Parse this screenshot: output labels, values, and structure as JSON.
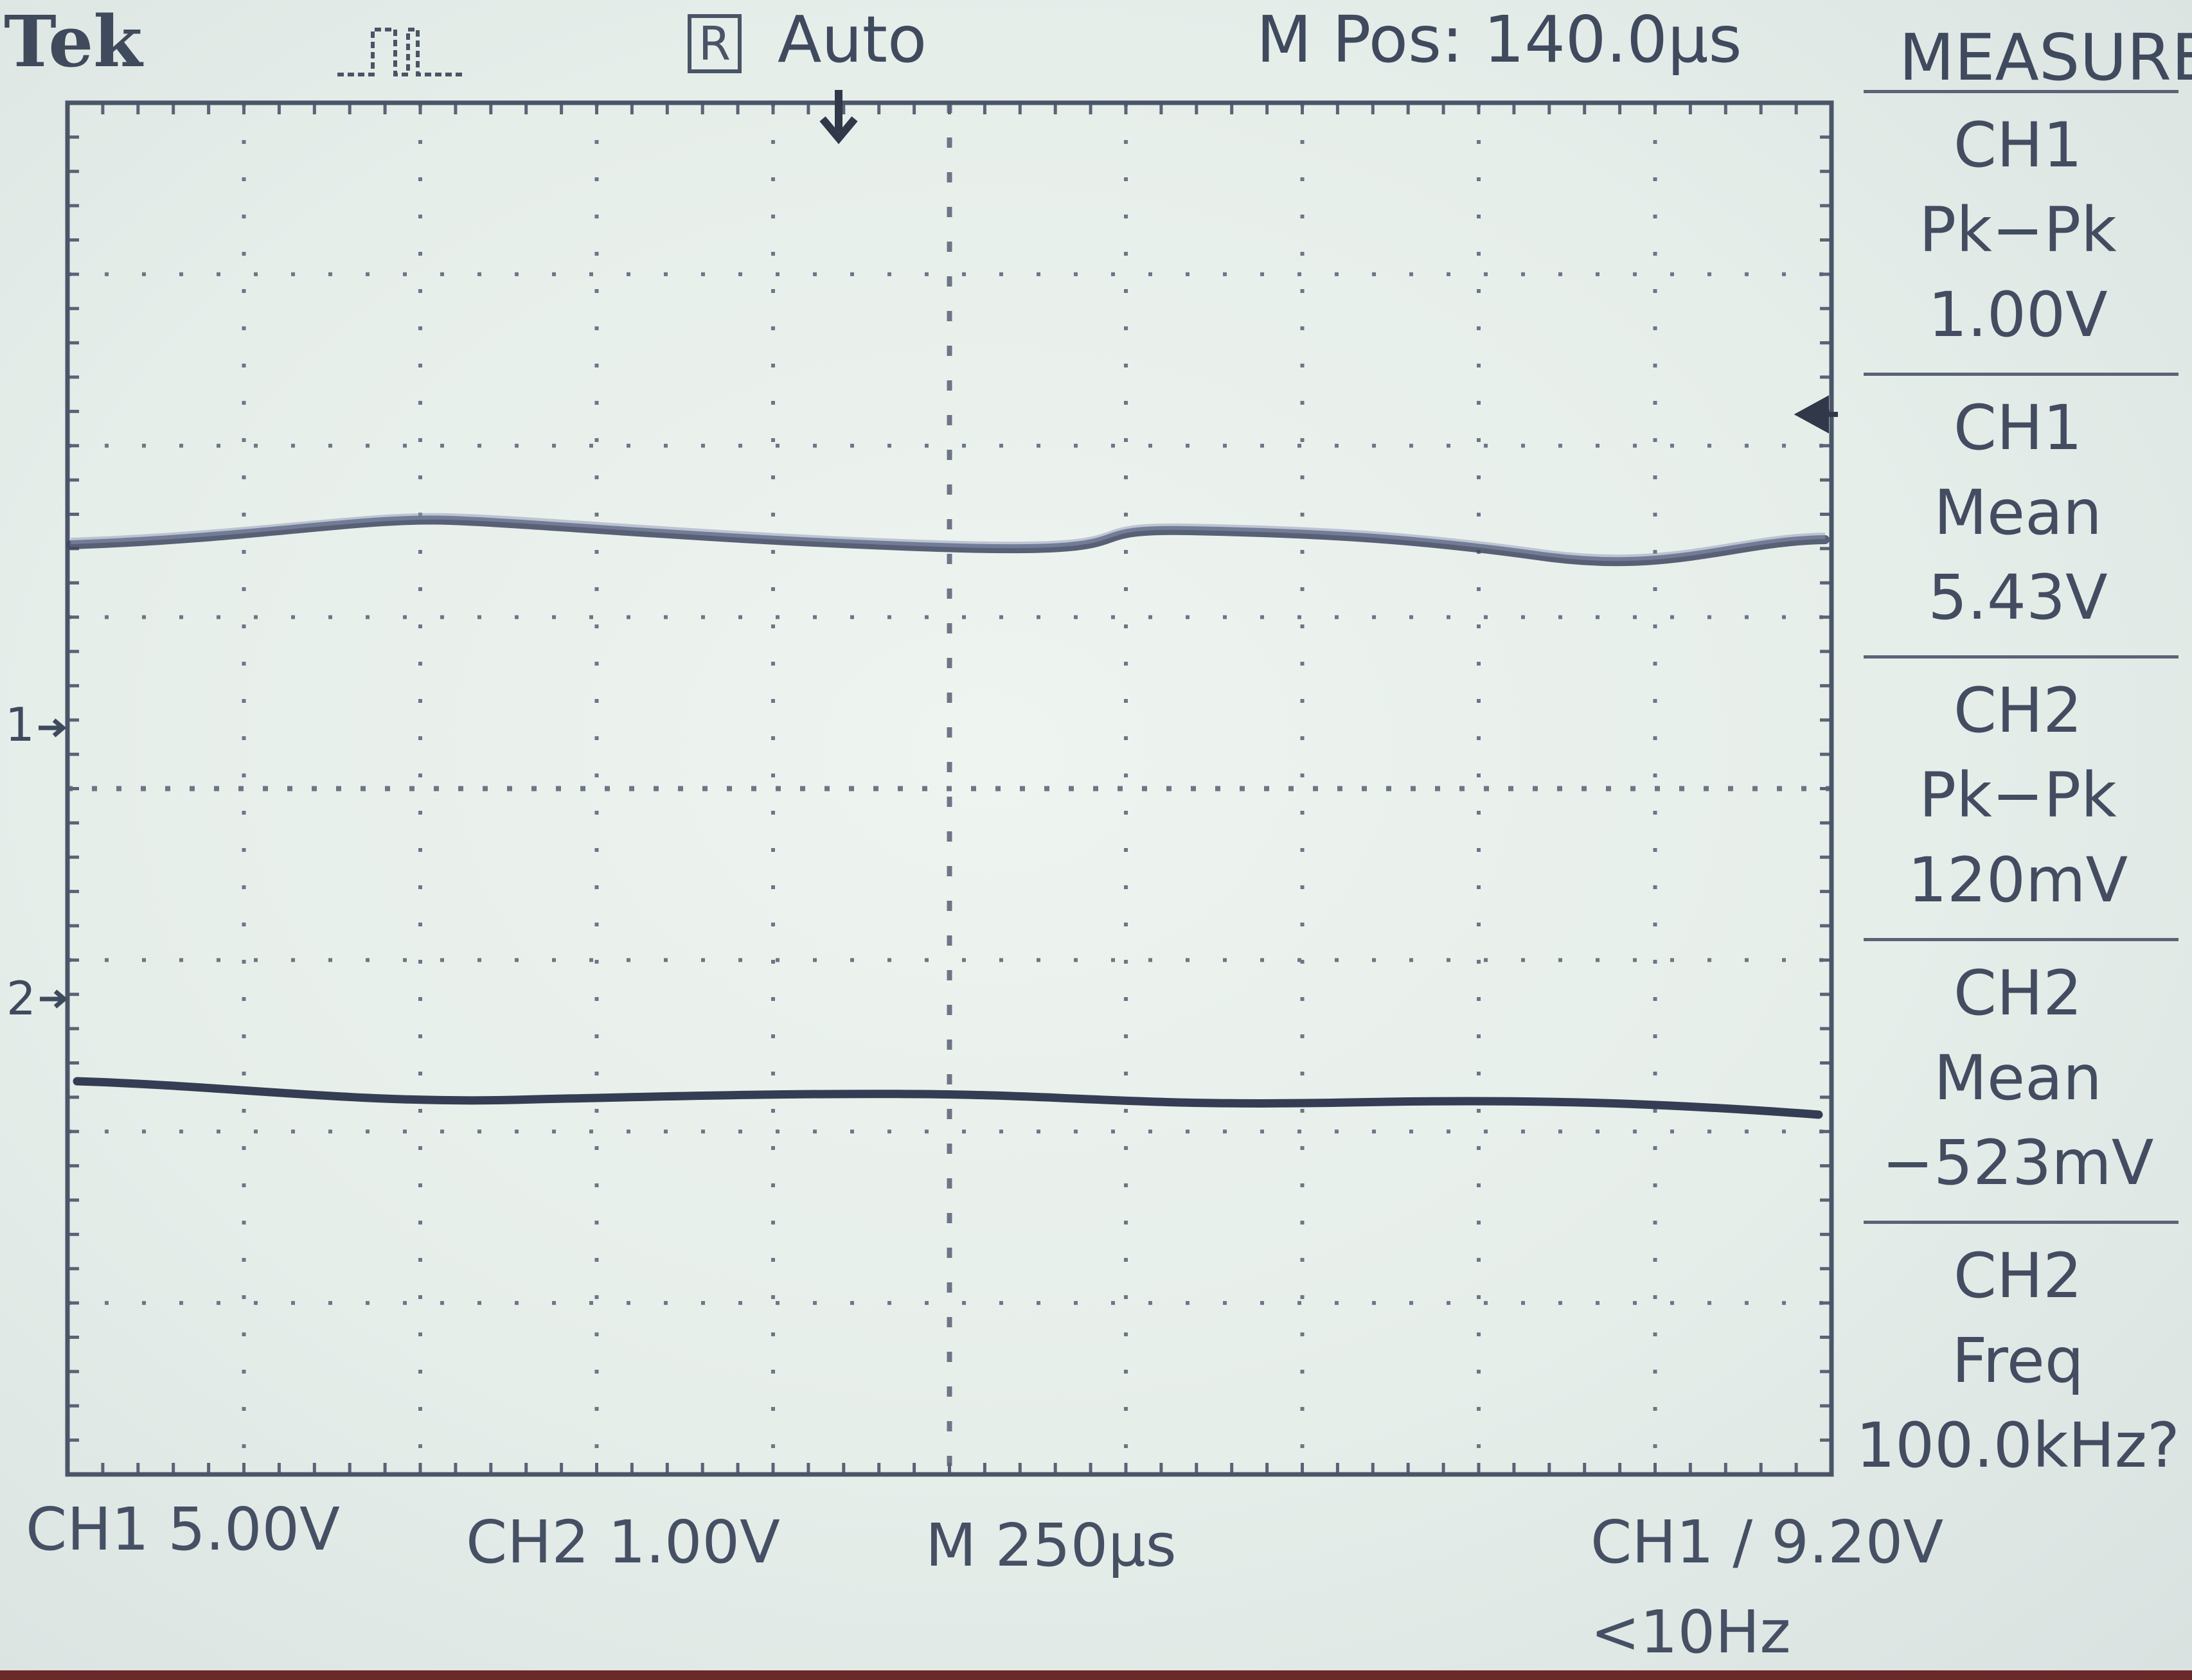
{
  "header": {
    "brand": "Tek",
    "trigger_mode_badge": "R",
    "run_state": "Auto",
    "main_position": "M Pos: 140.0µs",
    "menu_title": "MEASURE"
  },
  "measurements": [
    {
      "source": "CH1",
      "type": "Pk−Pk",
      "value": "1.00V"
    },
    {
      "source": "CH1",
      "type": "Mean",
      "value": "5.43V"
    },
    {
      "source": "CH2",
      "type": "Pk−Pk",
      "value": "120mV"
    },
    {
      "source": "CH2",
      "type": "Mean",
      "value": "−523mV"
    },
    {
      "source": "CH2",
      "type": "Freq",
      "value": "100.0kHz?"
    }
  ],
  "markers": {
    "ch1_ground": "1",
    "ch2_ground": "2"
  },
  "footer": {
    "ch1_scale": "CH1  5.00V",
    "ch2_scale": "CH2  1.00V",
    "timebase": "M 250µs",
    "trigger": "CH1 ∕ 9.20V",
    "trigger_freq": "<10Hz"
  },
  "colors": {
    "screen_bg": "#e8efec",
    "trace": "#3e4760",
    "grid": "#6d7586",
    "text": "#404a5e"
  }
}
